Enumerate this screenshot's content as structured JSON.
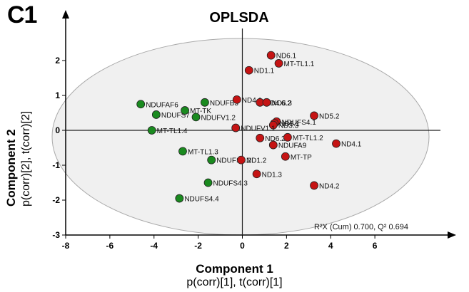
{
  "panel_label": "C1",
  "chart_data": {
    "type": "scatter",
    "title": "OPLSDA",
    "xlabel": "Component 1",
    "xlabel_sub": "p(corr)[1], t(corr)[1]",
    "ylabel": "Component 2",
    "ylabel_sub": "p(corr)[2], t(corr)[2]",
    "xlim": [
      -8,
      8
    ],
    "ylim": [
      -3,
      3
    ],
    "x_ticks": [
      -8,
      -6,
      -4,
      -2,
      0,
      2,
      4,
      6
    ],
    "y_ticks": [
      -3,
      -2,
      -1,
      0,
      1,
      2
    ],
    "grid": false,
    "annotation": "R²X (Cum) 0.700, Q² 0.694",
    "colors": {
      "green": "#1a8a1f",
      "red": "#c51414",
      "ellipse": "#f0f0f0"
    },
    "series": [
      {
        "color": "green",
        "points": [
          {
            "label": "NDUFAF6",
            "x": -4.6,
            "y": 0.75
          },
          {
            "label": "NDUFS7",
            "x": -3.9,
            "y": 0.45
          },
          {
            "label": "MT-TK",
            "x": -2.6,
            "y": 0.57
          },
          {
            "label": "NDUFB3",
            "x": -1.7,
            "y": 0.8
          },
          {
            "label": "NDUFV1.2",
            "x": -2.1,
            "y": 0.38
          },
          {
            "label": "MT-TL1.4",
            "x": -4.1,
            "y": 0.0
          },
          {
            "label": "MT-TL1.3",
            "x": -2.7,
            "y": -0.6
          },
          {
            "label": "NDUFS4.2",
            "x": -1.4,
            "y": -0.85
          },
          {
            "label": "NDUFS4.3",
            "x": -1.55,
            "y": -1.5
          },
          {
            "label": "NDUFS4.4",
            "x": -2.85,
            "y": -1.95
          }
        ]
      },
      {
        "color": "red",
        "points": [
          {
            "label": "ND6.1",
            "x": 1.3,
            "y": 2.15
          },
          {
            "label": "MT-TL1.1",
            "x": 1.65,
            "y": 1.92
          },
          {
            "label": "ND1.1",
            "x": 0.3,
            "y": 1.72
          },
          {
            "label": "ND4.1",
            "x": -0.25,
            "y": 0.88
          },
          {
            "label": "ND4.6.2",
            "x": 0.8,
            "y": 0.8
          },
          {
            "label": "ND6.3",
            "x": 1.1,
            "y": 0.8
          },
          {
            "label": "ND5.2",
            "x": 3.25,
            "y": 0.42
          },
          {
            "label": "NDUFS4.1",
            "x": 1.55,
            "y": 0.25
          },
          {
            "label": "ND5.1",
            "x": 1.45,
            "y": 0.2
          },
          {
            "label": "ND3.3",
            "x": 1.4,
            "y": 0.15
          },
          {
            "label": "NDUFV1.1",
            "x": -0.3,
            "y": 0.07
          },
          {
            "label": "ND6.2",
            "x": 0.8,
            "y": -0.22
          },
          {
            "label": "MT-TL1.2",
            "x": 2.05,
            "y": -0.2
          },
          {
            "label": "NDUFA9",
            "x": 1.4,
            "y": -0.42
          },
          {
            "label": "ND4.1",
            "x": 4.25,
            "y": -0.38
          },
          {
            "label": "MT-TP",
            "x": 1.95,
            "y": -0.75
          },
          {
            "label": "ND1.2",
            "x": -0.05,
            "y": -0.85
          },
          {
            "label": "ND1.3",
            "x": 0.65,
            "y": -1.25
          },
          {
            "label": "ND4.2",
            "x": 3.25,
            "y": -1.58
          }
        ]
      }
    ]
  }
}
